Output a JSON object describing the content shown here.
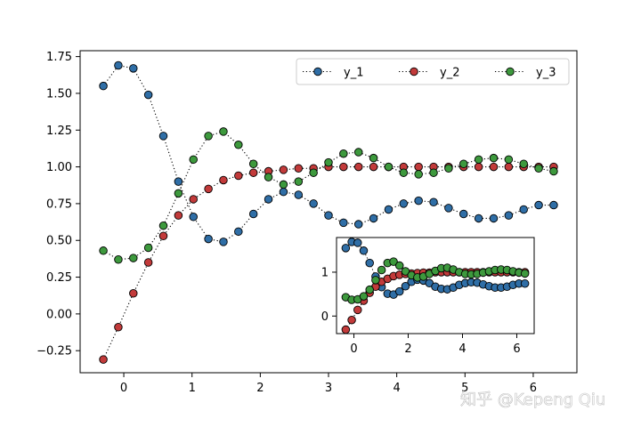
{
  "chart_data": {
    "type": "line",
    "xlim": [
      -0.64,
      6.64
    ],
    "ylim": [
      -0.4,
      1.79
    ],
    "xticks": [
      0,
      1,
      2,
      3,
      4,
      5,
      6
    ],
    "xtick_labels": [
      "0",
      "1",
      "2",
      "3",
      "4",
      "5",
      "6"
    ],
    "yticks": [
      -0.25,
      0.0,
      0.25,
      0.5,
      0.75,
      1.0,
      1.25,
      1.5,
      1.75
    ],
    "ytick_labels": [
      "−0.25",
      "0.00",
      "0.25",
      "0.50",
      "0.75",
      "1.00",
      "1.25",
      "1.50",
      "1.75"
    ],
    "grid": false,
    "legend": {
      "placement": "top-right",
      "ncol": 3
    },
    "x": [
      -0.3,
      -0.08,
      0.14,
      0.36,
      0.58,
      0.8,
      1.02,
      1.24,
      1.46,
      1.68,
      1.9,
      2.12,
      2.34,
      2.56,
      2.78,
      3.0,
      3.22,
      3.44,
      3.66,
      3.88,
      4.1,
      4.32,
      4.54,
      4.76,
      4.98,
      5.2,
      5.42,
      5.64,
      5.86,
      6.08,
      6.3
    ],
    "series": [
      {
        "name": "y_1",
        "color": "#2f6ea6",
        "values": [
          1.55,
          1.69,
          1.67,
          1.49,
          1.21,
          0.9,
          0.66,
          0.51,
          0.49,
          0.56,
          0.68,
          0.78,
          0.83,
          0.81,
          0.75,
          0.67,
          0.62,
          0.61,
          0.65,
          0.71,
          0.75,
          0.77,
          0.76,
          0.72,
          0.68,
          0.65,
          0.65,
          0.67,
          0.71,
          0.74,
          0.74
        ]
      },
      {
        "name": "y_2",
        "color": "#c23a3a",
        "values": [
          -0.31,
          -0.09,
          0.14,
          0.35,
          0.53,
          0.67,
          0.78,
          0.85,
          0.91,
          0.94,
          0.96,
          0.97,
          0.98,
          0.99,
          0.99,
          1.0,
          1.0,
          1.0,
          1.0,
          1.0,
          1.0,
          1.0,
          1.0,
          1.0,
          1.0,
          1.0,
          1.0,
          1.0,
          1.0,
          1.0,
          1.0
        ]
      },
      {
        "name": "y_3",
        "color": "#3d993d",
        "values": [
          0.43,
          0.37,
          0.38,
          0.45,
          0.6,
          0.82,
          1.05,
          1.21,
          1.24,
          1.15,
          1.02,
          0.93,
          0.88,
          0.9,
          0.96,
          1.03,
          1.09,
          1.1,
          1.06,
          1.0,
          0.96,
          0.95,
          0.96,
          0.99,
          1.02,
          1.05,
          1.06,
          1.05,
          1.02,
          0.99,
          0.97
        ]
      }
    ],
    "inset": {
      "xticks": [
        0,
        2,
        4,
        6
      ],
      "xtick_labels": [
        "0",
        "2",
        "4",
        "6"
      ],
      "yticks": [
        0,
        1
      ],
      "ytick_labels": [
        "0",
        "1"
      ]
    }
  },
  "watermark": "知乎 @Kepeng Qiu"
}
